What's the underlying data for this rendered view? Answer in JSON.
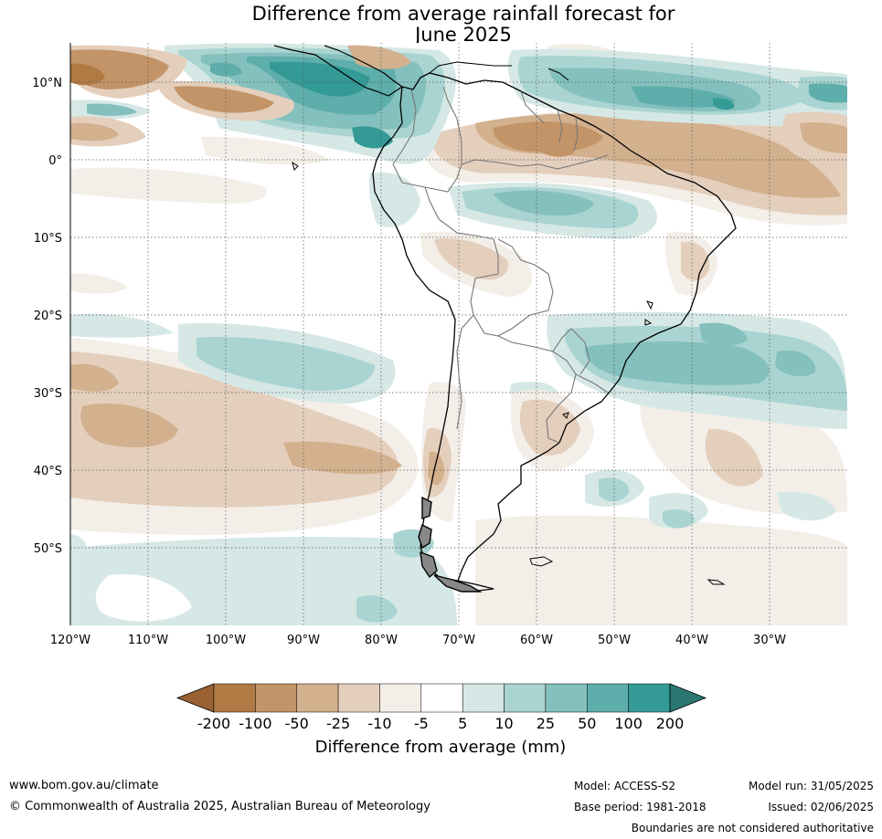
{
  "title": {
    "line1": "Difference from average rainfall forecast for",
    "line2": "June 2025"
  },
  "map": {
    "region": "South America",
    "lat_labels": [
      "10°N",
      "0°",
      "10°S",
      "20°S",
      "30°S",
      "40°S",
      "50°S"
    ],
    "lon_labels": [
      "120°W",
      "110°W",
      "100°W",
      "90°W",
      "80°W",
      "70°W",
      "60°W",
      "50°W",
      "40°W",
      "30°W"
    ],
    "gridlines": true
  },
  "colorbar": {
    "title": "Difference from average (mm)",
    "tick_labels": [
      "-200",
      "-100",
      "-50",
      "-25",
      "-10",
      "-5",
      "5",
      "10",
      "25",
      "50",
      "100",
      "200"
    ],
    "colors": {
      "lt_m200": "#9a6232",
      "m200_m100": "#b07a44",
      "m100_m50": "#c39467",
      "m50_m25": "#d3b08e",
      "m25_m10": "#e4cfbc",
      "m10_m5": "#f3eee8",
      "m5_p5": "#ffffff",
      "p5_p10": "#d5e8e6",
      "p10_p25": "#aad4d1",
      "p25_p50": "#84c0bd",
      "p50_p100": "#5eaeab",
      "p100_p200": "#349a96",
      "gt_p200": "#2a7772"
    }
  },
  "footer": {
    "website": "www.bom.gov.au/climate",
    "copyright": "© Commonwealth of Australia 2025, Australian Bureau of Meteorology",
    "model": "Model: ACCESS-S2",
    "base_period": "Base period: 1981-2018",
    "model_run": "Model run: 31/05/2025",
    "issued": "Issued: 02/06/2025",
    "disclaimer": "Boundaries are not considered authoritative"
  }
}
